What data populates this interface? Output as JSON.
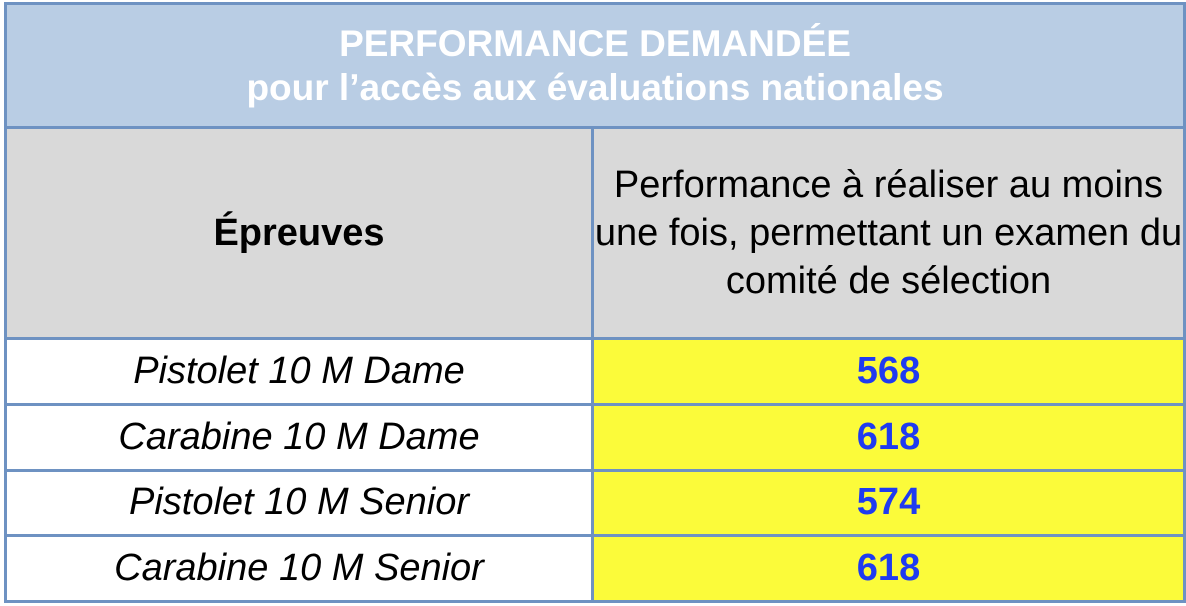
{
  "title": {
    "line1": "PERFORMANCE DEMANDÉE",
    "line2": "pour l’accès aux évaluations nationales"
  },
  "header": {
    "epreuves": "Épreuves",
    "performance": "Performance à réaliser au moins une fois, permettant un examen du comité de sélection"
  },
  "rows": [
    {
      "epreuve": "Pistolet 10 M Dame",
      "performance": "568"
    },
    {
      "epreuve": "Carabine 10 M Dame",
      "performance": "618"
    },
    {
      "epreuve": "Pistolet 10 M Senior",
      "performance": "574"
    },
    {
      "epreuve": "Carabine 10 M Senior",
      "performance": "618"
    }
  ],
  "colors": {
    "title_background": "#b9cde4",
    "header_background": "#d9d9d9",
    "value_background": "#fbfb3a",
    "value_text": "#1f3bf0",
    "border": "#6e92c2"
  }
}
